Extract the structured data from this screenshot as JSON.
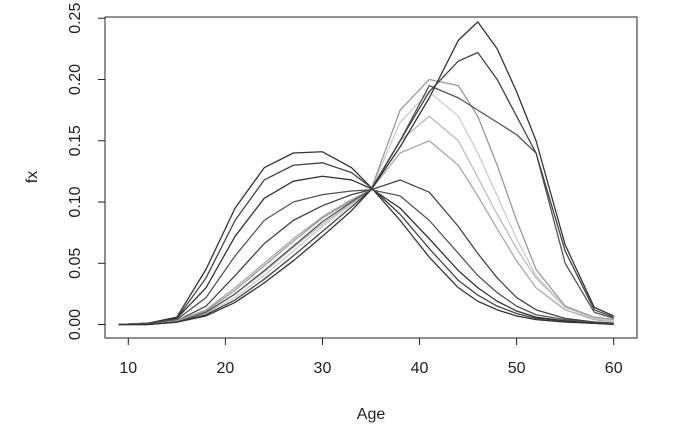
{
  "chart_data": {
    "type": "line",
    "xlabel": "Age",
    "ylabel": "fx",
    "xlim": [
      7.6,
      62.4
    ],
    "ylim": [
      -0.011,
      0.251
    ],
    "xticks": [
      10,
      20,
      30,
      40,
      50,
      60
    ],
    "yticks": [
      {
        "value": 0,
        "label": "0.00"
      },
      0.05,
      {
        "value": 0.1,
        "label": "0.10"
      },
      0.15,
      {
        "value": 0.2,
        "label": "0.20"
      },
      0.25
    ],
    "x": [
      9,
      12,
      15,
      18,
      21,
      24,
      27,
      30,
      33,
      35,
      38,
      41,
      44,
      46,
      48,
      50,
      52,
      55,
      58,
      60
    ],
    "series": [
      {
        "color": "#333333",
        "values": [
          0,
          0.001,
          0.006,
          0.045,
          0.095,
          0.128,
          0.14,
          0.141,
          0.128,
          0.112,
          0.085,
          0.055,
          0.03,
          0.019,
          0.012,
          0.007,
          0.004,
          0.002,
          0.001,
          0
        ]
      },
      {
        "color": "#444444",
        "values": [
          0,
          0.001,
          0.005,
          0.038,
          0.085,
          0.118,
          0.13,
          0.132,
          0.124,
          0.112,
          0.09,
          0.062,
          0.036,
          0.024,
          0.015,
          0.009,
          0.005,
          0.003,
          0.001,
          0.001
        ]
      },
      {
        "color": "#333333",
        "values": [
          0,
          0.001,
          0.005,
          0.03,
          0.072,
          0.103,
          0.117,
          0.121,
          0.118,
          0.111,
          0.095,
          0.07,
          0.044,
          0.03,
          0.019,
          0.011,
          0.006,
          0.003,
          0.001,
          0.001
        ]
      },
      {
        "color": "#555555",
        "values": [
          0,
          0.001,
          0.004,
          0.022,
          0.056,
          0.085,
          0.1,
          0.106,
          0.109,
          0.11,
          0.105,
          0.085,
          0.058,
          0.04,
          0.026,
          0.015,
          0.008,
          0.004,
          0.002,
          0.001
        ]
      },
      {
        "color": "#444444",
        "values": [
          0,
          0.001,
          0.003,
          0.015,
          0.04,
          0.066,
          0.085,
          0.097,
          0.106,
          0.11,
          0.118,
          0.108,
          0.08,
          0.058,
          0.038,
          0.022,
          0.012,
          0.005,
          0.002,
          0.001
        ]
      },
      {
        "color": "#aaaaaa",
        "values": [
          0,
          0,
          0.003,
          0.012,
          0.03,
          0.05,
          0.07,
          0.088,
          0.102,
          0.11,
          0.14,
          0.15,
          0.13,
          0.105,
          0.078,
          0.052,
          0.03,
          0.012,
          0.004,
          0.002
        ]
      },
      {
        "color": "#bbbbbb",
        "values": [
          0,
          0,
          0.002,
          0.01,
          0.025,
          0.043,
          0.063,
          0.082,
          0.099,
          0.11,
          0.15,
          0.17,
          0.15,
          0.12,
          0.09,
          0.062,
          0.038,
          0.014,
          0.005,
          0.002
        ]
      },
      {
        "color": "#cccccc",
        "values": [
          0,
          0,
          0.002,
          0.009,
          0.022,
          0.04,
          0.06,
          0.08,
          0.098,
          0.11,
          0.165,
          0.19,
          0.17,
          0.14,
          0.105,
          0.07,
          0.04,
          0.014,
          0.005,
          0.003
        ]
      },
      {
        "color": "#999999",
        "values": [
          0,
          0,
          0.002,
          0.011,
          0.028,
          0.048,
          0.068,
          0.087,
          0.101,
          0.11,
          0.175,
          0.2,
          0.195,
          0.17,
          0.13,
          0.085,
          0.045,
          0.015,
          0.006,
          0.004
        ]
      },
      {
        "color": "#555555",
        "values": [
          0,
          0,
          0.002,
          0.01,
          0.025,
          0.044,
          0.064,
          0.084,
          0.1,
          0.11,
          0.15,
          0.195,
          0.185,
          0.175,
          0.165,
          0.155,
          0.14,
          0.05,
          0.01,
          0.005
        ]
      },
      {
        "color": "#444444",
        "values": [
          0,
          0,
          0.002,
          0.008,
          0.02,
          0.037,
          0.056,
          0.076,
          0.096,
          0.11,
          0.15,
          0.19,
          0.215,
          0.222,
          0.2,
          0.17,
          0.14,
          0.06,
          0.012,
          0.006
        ]
      },
      {
        "color": "#333333",
        "values": [
          0,
          0,
          0.002,
          0.007,
          0.018,
          0.034,
          0.052,
          0.072,
          0.093,
          0.11,
          0.145,
          0.185,
          0.232,
          0.247,
          0.225,
          0.19,
          0.15,
          0.065,
          0.014,
          0.007
        ]
      }
    ]
  }
}
